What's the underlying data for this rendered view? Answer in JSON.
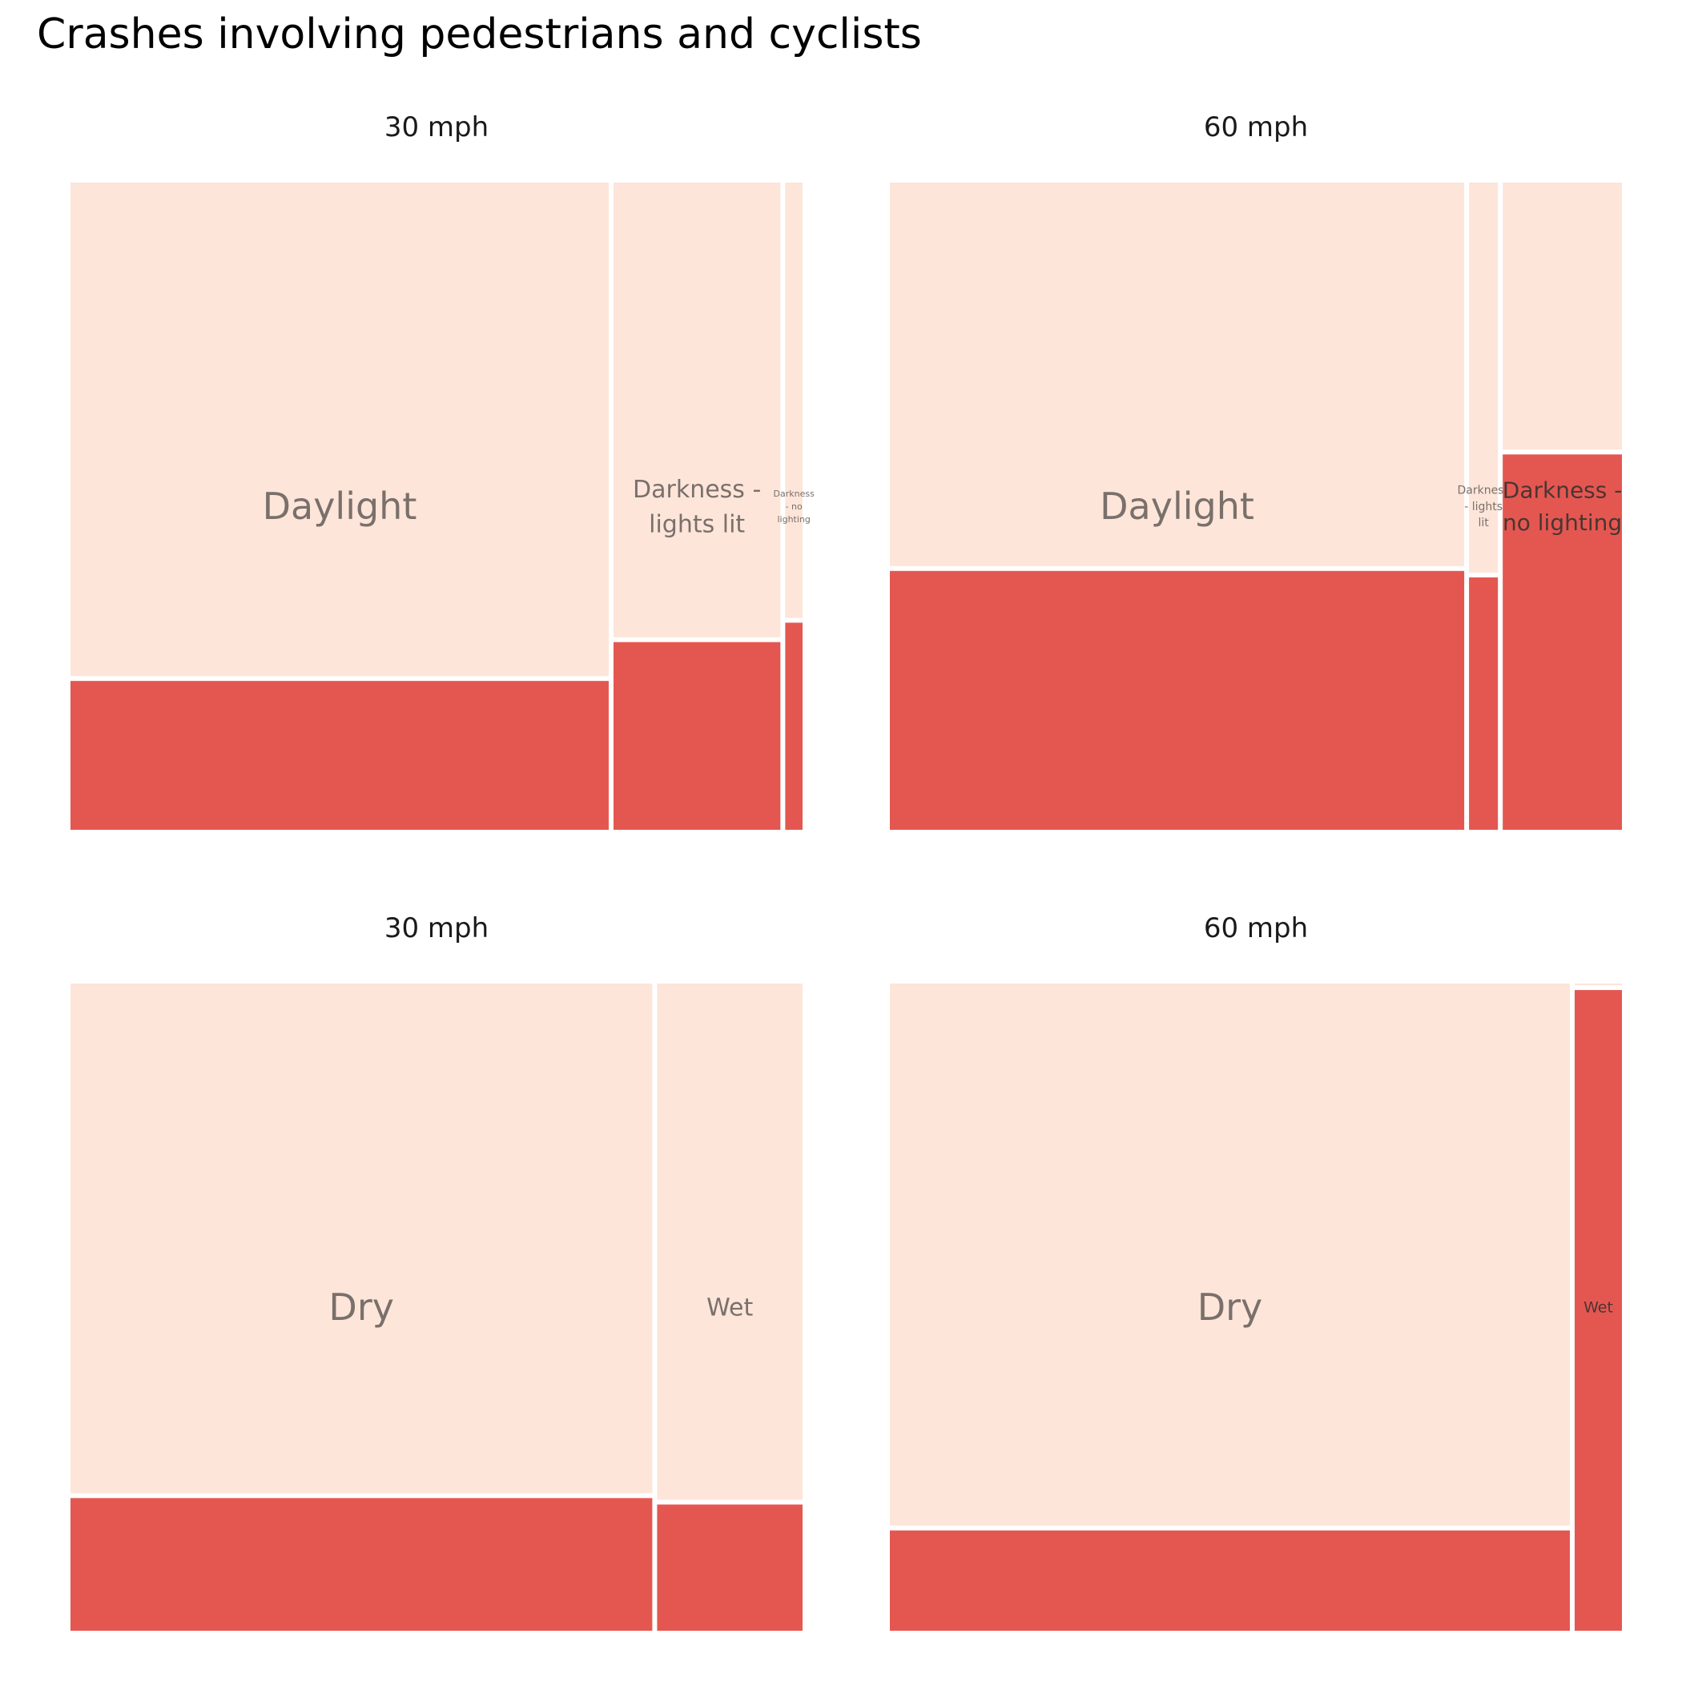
{
  "title": "Crashes involving pedestrians and cyclists",
  "colors": {
    "background": "#ffffff",
    "light_cell": "#fde5d9",
    "dark_cell": "#e45751",
    "cell_label": "#7a706b",
    "cell_label_on_dark": "#4a3532",
    "facet_title": "#1a1a1a",
    "title": "#000000",
    "separator": "#ffffff"
  },
  "chart_data": [
    {
      "type": "mosaic",
      "facet_title": "30 mph",
      "variable": "light_conditions",
      "categories": [
        "Daylight",
        "Darkness - lights lit",
        "Darkness - no lighting"
      ],
      "column_shares": [
        0.745,
        0.231,
        0.024
      ],
      "dark_segment_shares": [
        0.23,
        0.29,
        0.32
      ]
    },
    {
      "type": "mosaic",
      "facet_title": "60 mph",
      "variable": "light_conditions",
      "categories": [
        "Daylight",
        "Darkness - lights lit",
        "Darkness - no lighting"
      ],
      "column_shares": [
        0.795,
        0.04,
        0.165
      ],
      "dark_segment_shares": [
        0.4,
        0.39,
        0.58
      ]
    },
    {
      "type": "mosaic",
      "facet_title": "30 mph",
      "variable": "road_surface",
      "categories": [
        "Dry",
        "Wet"
      ],
      "column_shares": [
        0.8,
        0.2
      ],
      "dark_segment_shares": [
        0.205,
        0.195
      ]
    },
    {
      "type": "mosaic",
      "facet_title": "60 mph",
      "variable": "road_surface",
      "categories": [
        "Dry",
        "Wet"
      ],
      "column_shares": [
        0.935,
        0.065
      ],
      "dark_segment_shares": [
        0.155,
        0.99
      ]
    }
  ]
}
